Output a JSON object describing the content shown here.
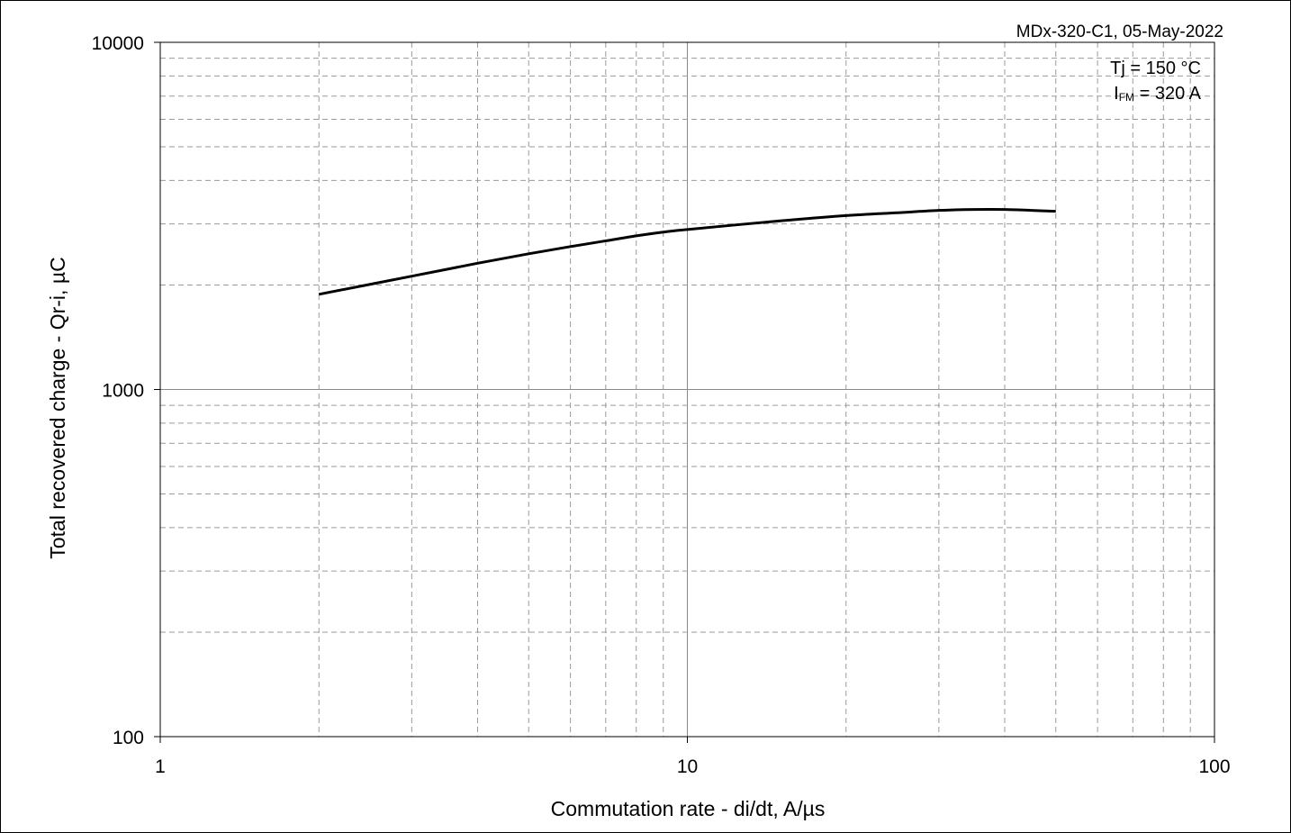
{
  "chart_data": {
    "type": "line",
    "reference": "MDx-320-C1, 05-May-2022",
    "conditions": {
      "tj": "Tj = 150 °C",
      "ifm_base": "I",
      "ifm_sub": "FM",
      "ifm_rest": " = 320 A"
    },
    "xlabel": "Commutation rate - di/dt, A/µs",
    "ylabel": "Total recovered charge - Qr-i, µC",
    "x_scale": "log",
    "y_scale": "log",
    "xlim": [
      1,
      100
    ],
    "ylim": [
      100,
      10000
    ],
    "x_ticks": [
      "1",
      "10",
      "100"
    ],
    "y_ticks": [
      "100",
      "1000",
      "10000"
    ],
    "grid": true,
    "series": [
      {
        "color": "#000000",
        "x": [
          2,
          3,
          4,
          5,
          6,
          7,
          8,
          9,
          10,
          15,
          20,
          25,
          30,
          35,
          40,
          45,
          50
        ],
        "y": [
          1880,
          2120,
          2310,
          2460,
          2580,
          2680,
          2770,
          2840,
          2890,
          3060,
          3170,
          3230,
          3280,
          3300,
          3300,
          3280,
          3260
        ]
      }
    ]
  }
}
